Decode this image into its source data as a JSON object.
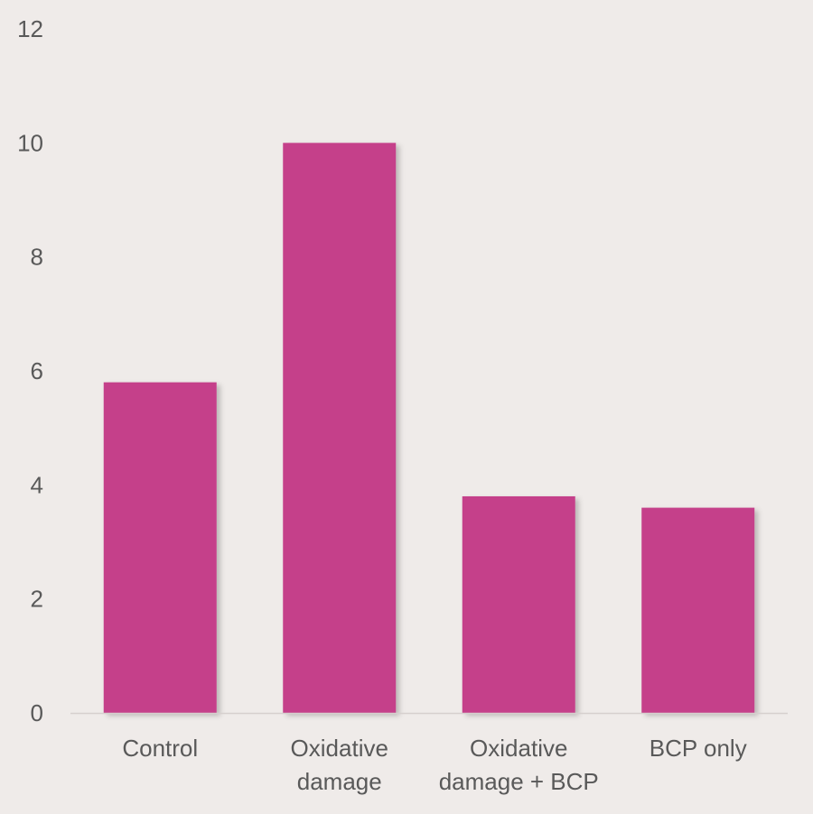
{
  "colors": {
    "background": "#efebe9",
    "bar": "#c5418a",
    "axis_line": "#d6d0ce",
    "text": "#595959"
  },
  "chart_data": {
    "type": "bar",
    "categories": [
      [
        "Control"
      ],
      [
        "Oxidative",
        "damage"
      ],
      [
        "Oxidative",
        "damage + BCP"
      ],
      [
        "BCP only"
      ]
    ],
    "values": [
      5.8,
      10.0,
      3.8,
      3.6
    ],
    "yticks": [
      0,
      2,
      4,
      6,
      8,
      10,
      12
    ],
    "ylim": [
      0,
      12
    ],
    "title": "",
    "xlabel": "",
    "ylabel": "",
    "grid": false,
    "legend": "none"
  }
}
